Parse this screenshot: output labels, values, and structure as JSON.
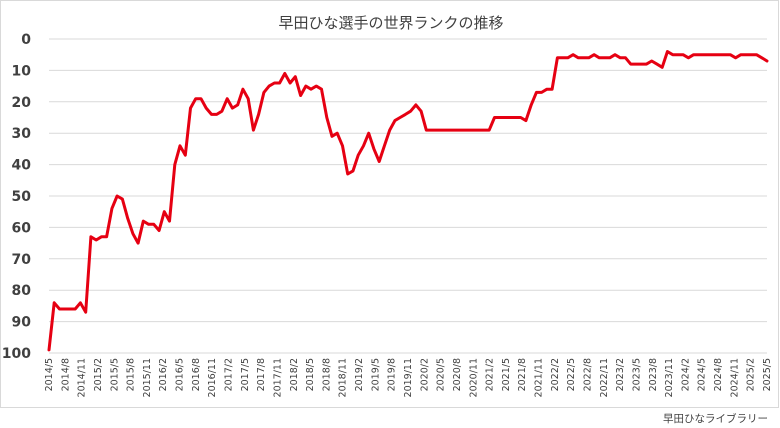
{
  "credit": "早田ひなライブラリー",
  "chart_data": {
    "type": "line",
    "title": "早田ひな選手の世界ランクの推移",
    "xlabel": "",
    "ylabel": "",
    "ylim": [
      0,
      100
    ],
    "y_reversed": true,
    "grid": true,
    "y_ticks": [
      "0",
      "10",
      "20",
      "30",
      "40",
      "50",
      "60",
      "70",
      "80",
      "90",
      "100"
    ],
    "x_ticks": [
      "2014/5",
      "2014/8",
      "2014/11",
      "2015/2",
      "2015/5",
      "2015/8",
      "2015/11",
      "2016/2",
      "2016/5",
      "2016/8",
      "2016/11",
      "2017/2",
      "2017/5",
      "2017/8",
      "2017/11",
      "2018/2",
      "2018/5",
      "2018/8",
      "2018/11",
      "2019/2",
      "2019/5",
      "2019/8",
      "2019/11",
      "2020/2",
      "2020/5",
      "2020/8",
      "2020/11",
      "2021/2",
      "2021/5",
      "2021/8",
      "2021/11",
      "2022/2",
      "2022/5",
      "2022/8",
      "2022/11",
      "2023/2",
      "2023/5",
      "2023/8",
      "2023/11",
      "2024/2",
      "2024/5",
      "2024/8",
      "2024/11",
      "2025/2",
      "2025/5"
    ],
    "series": [
      {
        "color": "#e60012",
        "values": [
          99,
          84,
          86,
          86,
          86,
          86,
          84,
          87,
          63,
          64,
          63,
          63,
          54,
          50,
          51,
          57,
          62,
          65,
          58,
          59,
          59,
          61,
          55,
          58,
          40,
          34,
          37,
          22,
          19,
          19,
          22,
          24,
          24,
          23,
          19,
          22,
          21,
          16,
          19,
          29,
          24,
          17,
          15,
          14,
          14,
          11,
          14,
          12,
          18,
          15,
          16,
          15,
          16,
          25,
          31,
          30,
          34,
          43,
          42,
          37,
          34,
          30,
          35,
          39,
          34,
          29,
          26,
          25,
          24,
          23,
          21,
          23,
          29,
          29,
          29,
          29,
          29,
          29,
          29,
          29,
          29,
          29,
          29,
          29,
          29,
          25,
          25,
          25,
          25,
          25,
          25,
          26,
          21,
          17,
          17,
          16,
          16,
          6,
          6,
          6,
          5,
          6,
          6,
          6,
          5,
          6,
          6,
          6,
          5,
          6,
          6,
          8,
          8,
          8,
          8,
          7,
          8,
          9,
          4,
          5,
          5,
          5,
          6,
          5,
          5,
          5,
          5,
          5,
          5,
          5,
          5,
          6,
          5,
          5,
          5,
          5,
          6,
          7
        ]
      }
    ]
  }
}
